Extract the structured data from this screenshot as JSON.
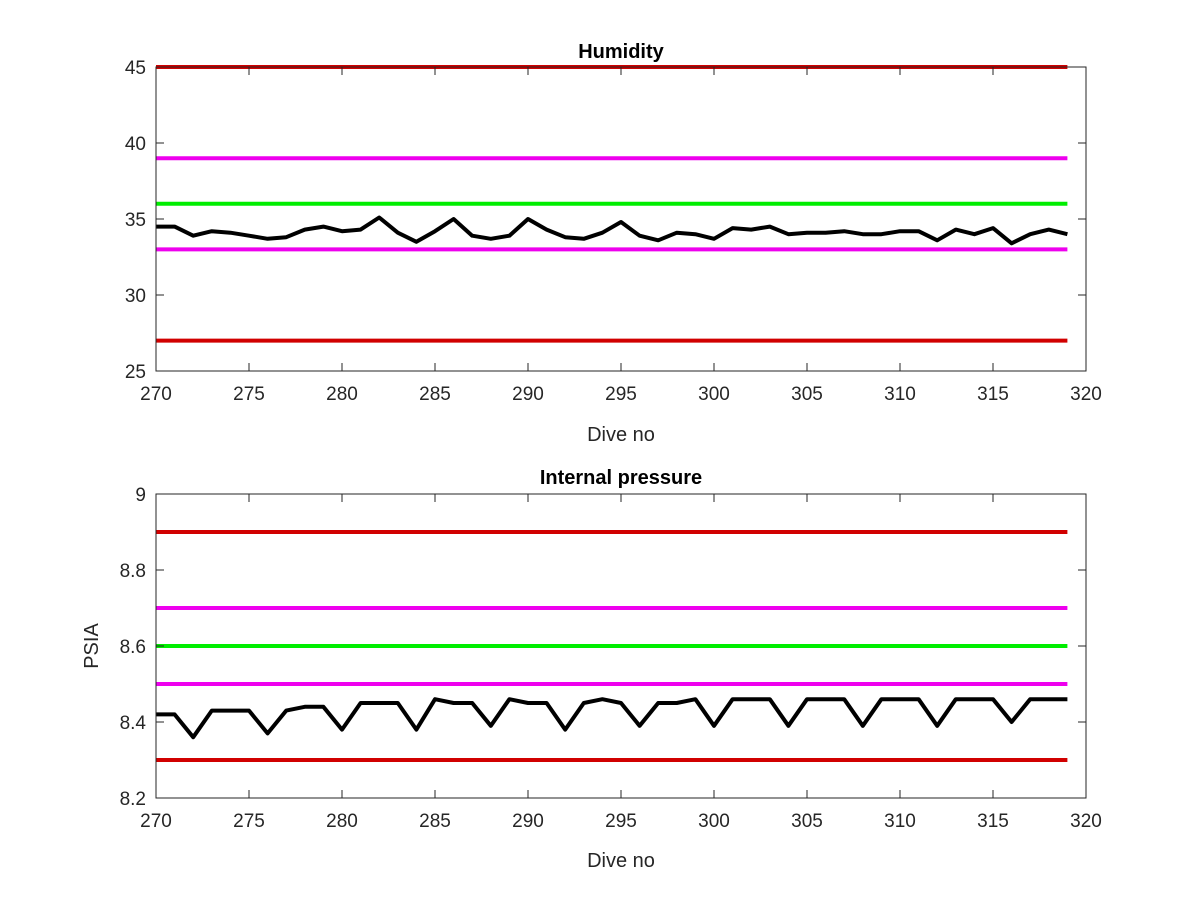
{
  "chart_data": [
    {
      "type": "line",
      "title": "Humidity",
      "xlabel": "Dive no",
      "ylabel": "",
      "xlim": [
        270,
        320
      ],
      "ylim": [
        25,
        45
      ],
      "xticks": [
        "270",
        "275",
        "280",
        "285",
        "290",
        "295",
        "300",
        "305",
        "310",
        "315",
        "320"
      ],
      "yticks": [
        "25",
        "30",
        "35",
        "40",
        "45"
      ],
      "grid": false,
      "reference_lines": [
        {
          "y": 45,
          "x": [
            270,
            319
          ],
          "color": "#d10000"
        },
        {
          "y": 39,
          "x": [
            270,
            319
          ],
          "color": "#ee00ee"
        },
        {
          "y": 36,
          "x": [
            270,
            319
          ],
          "color": "#00ee00"
        },
        {
          "y": 33,
          "x": [
            270,
            319
          ],
          "color": "#ee00ee"
        },
        {
          "y": 27,
          "x": [
            270,
            319
          ],
          "color": "#d10000"
        }
      ],
      "series": [
        {
          "color": "#000000",
          "x": [
            270,
            271,
            272,
            273,
            274,
            275,
            276,
            277,
            278,
            279,
            280,
            281,
            282,
            283,
            284,
            285,
            286,
            287,
            288,
            289,
            290,
            291,
            292,
            293,
            294,
            295,
            296,
            297,
            298,
            299,
            300,
            301,
            302,
            303,
            304,
            305,
            306,
            307,
            308,
            309,
            310,
            311,
            312,
            313,
            314,
            315,
            316,
            317,
            318,
            319
          ],
          "values": [
            34.5,
            34.5,
            33.9,
            34.2,
            34.1,
            33.9,
            33.7,
            33.8,
            34.3,
            34.5,
            34.2,
            34.3,
            35.1,
            34.1,
            33.5,
            34.2,
            35.0,
            33.9,
            33.7,
            33.9,
            35.0,
            34.3,
            33.8,
            33.7,
            34.1,
            34.8,
            33.9,
            33.6,
            34.1,
            34.0,
            33.7,
            34.4,
            34.3,
            34.5,
            34.0,
            34.1,
            34.1,
            34.2,
            34.0,
            34.0,
            34.2,
            34.2,
            33.6,
            34.3,
            34.0,
            34.4,
            33.4,
            34.0,
            34.3,
            34.0
          ]
        }
      ]
    },
    {
      "type": "line",
      "title": "Internal pressure",
      "xlabel": "Dive no",
      "ylabel": "PSIA",
      "xlim": [
        270,
        320
      ],
      "ylim": [
        8.2,
        9
      ],
      "xticks": [
        "270",
        "275",
        "280",
        "285",
        "290",
        "295",
        "300",
        "305",
        "310",
        "315",
        "320"
      ],
      "yticks": [
        "8.2",
        "8.4",
        "8.6",
        "8.8",
        "9"
      ],
      "grid": false,
      "reference_lines": [
        {
          "y": 8.9,
          "x": [
            270,
            319
          ],
          "color": "#d10000"
        },
        {
          "y": 8.7,
          "x": [
            270,
            319
          ],
          "color": "#ee00ee"
        },
        {
          "y": 8.6,
          "x": [
            270,
            319
          ],
          "color": "#00ee00"
        },
        {
          "y": 8.5,
          "x": [
            270,
            319
          ],
          "color": "#ee00ee"
        },
        {
          "y": 8.3,
          "x": [
            270,
            319
          ],
          "color": "#d10000"
        }
      ],
      "series": [
        {
          "color": "#000000",
          "x": [
            270,
            271,
            272,
            273,
            274,
            275,
            276,
            277,
            278,
            279,
            280,
            281,
            282,
            283,
            284,
            285,
            286,
            287,
            288,
            289,
            290,
            291,
            292,
            293,
            294,
            295,
            296,
            297,
            298,
            299,
            300,
            301,
            302,
            303,
            304,
            305,
            306,
            307,
            308,
            309,
            310,
            311,
            312,
            313,
            314,
            315,
            316,
            317,
            318,
            319
          ],
          "values": [
            8.42,
            8.42,
            8.36,
            8.43,
            8.43,
            8.43,
            8.37,
            8.43,
            8.44,
            8.44,
            8.38,
            8.45,
            8.45,
            8.45,
            8.38,
            8.46,
            8.45,
            8.45,
            8.39,
            8.46,
            8.45,
            8.45,
            8.38,
            8.45,
            8.46,
            8.45,
            8.39,
            8.45,
            8.45,
            8.46,
            8.39,
            8.46,
            8.46,
            8.46,
            8.39,
            8.46,
            8.46,
            8.46,
            8.39,
            8.46,
            8.46,
            8.46,
            8.39,
            8.46,
            8.46,
            8.46,
            8.4,
            8.46,
            8.46,
            8.46
          ]
        }
      ]
    }
  ]
}
